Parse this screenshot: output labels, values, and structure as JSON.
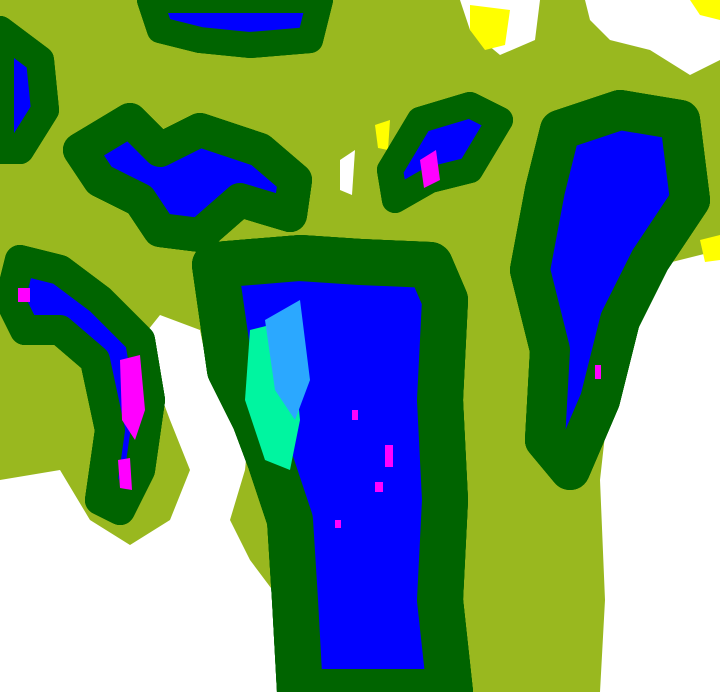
{
  "palette": {
    "background_olive": "#99b81f",
    "white": "#ffffff",
    "yellow": "#ffff00",
    "dark_green": "#006400",
    "green": "#00ff00",
    "aqua_green": "#00f5a0",
    "light_blue": "#2ba8ff",
    "blue": "#0000ff",
    "magenta": "#ff00ff"
  }
}
